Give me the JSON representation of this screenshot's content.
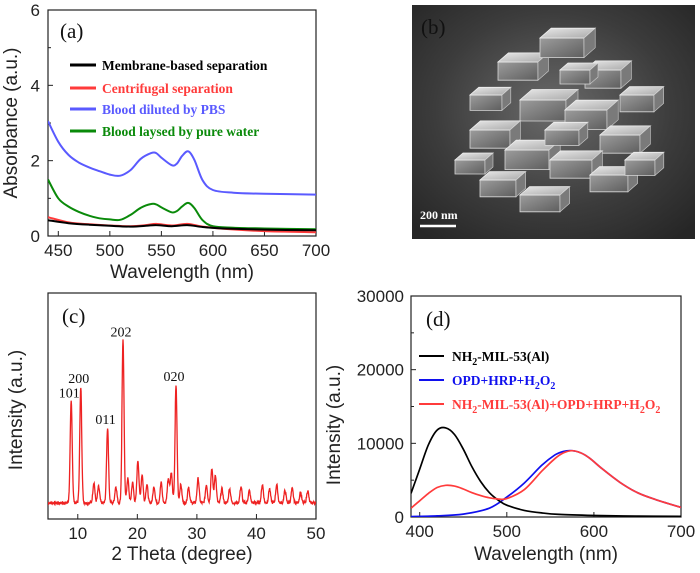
{
  "panels": {
    "a": "(a)",
    "b": "(b)",
    "c": "(c)",
    "d": "(d)"
  },
  "sem_scale_bar": "200 nm",
  "colors": {
    "black": "#000000",
    "red": "#ff3b3b",
    "blue": "#5a5aff",
    "green": "#0a8a0a",
    "xrd": "#ee2222",
    "pure_blue": "#1010ee"
  },
  "chart_data": [
    {
      "id": "a",
      "type": "line",
      "xlabel": "Wavelength (nm)",
      "ylabel": "Absorbance (a.u.)",
      "xlim": [
        440,
        700
      ],
      "ylim": [
        0,
        6
      ],
      "xticks": [
        450,
        500,
        550,
        600,
        650,
        700
      ],
      "yticks": [
        0,
        2,
        4,
        6
      ],
      "legend_position": "top-right",
      "series": [
        {
          "name": "Membrane-based separation",
          "color": "#000000",
          "x": [
            440,
            460,
            480,
            500,
            520,
            535,
            545,
            560,
            575,
            590,
            610,
            650,
            700
          ],
          "y": [
            0.42,
            0.34,
            0.3,
            0.27,
            0.25,
            0.27,
            0.29,
            0.26,
            0.29,
            0.24,
            0.2,
            0.17,
            0.15
          ]
        },
        {
          "name": "Centrifugal separation",
          "color": "#ff3b3b",
          "x": [
            440,
            460,
            480,
            500,
            520,
            535,
            545,
            560,
            575,
            590,
            610,
            650,
            700
          ],
          "y": [
            0.5,
            0.36,
            0.31,
            0.28,
            0.26,
            0.29,
            0.32,
            0.28,
            0.32,
            0.25,
            0.19,
            0.13,
            0.1
          ]
        },
        {
          "name": "Blood diluted by PBS",
          "color": "#5a5aff",
          "x": [
            440,
            450,
            460,
            470,
            480,
            490,
            500,
            510,
            520,
            530,
            540,
            545,
            550,
            560,
            565,
            570,
            576,
            582,
            590,
            600,
            620,
            650,
            700
          ],
          "y": [
            3.05,
            2.5,
            2.15,
            1.95,
            1.82,
            1.72,
            1.63,
            1.6,
            1.75,
            2.05,
            2.2,
            2.2,
            2.08,
            1.88,
            1.92,
            2.12,
            2.25,
            2.02,
            1.48,
            1.22,
            1.15,
            1.12,
            1.1
          ]
        },
        {
          "name": "Blood laysed by pure water",
          "color": "#0a8a0a",
          "x": [
            440,
            450,
            460,
            470,
            480,
            490,
            500,
            510,
            520,
            530,
            540,
            545,
            550,
            560,
            565,
            570,
            576,
            582,
            590,
            600,
            620,
            650,
            700
          ],
          "y": [
            1.5,
            1.0,
            0.78,
            0.64,
            0.54,
            0.47,
            0.44,
            0.43,
            0.56,
            0.75,
            0.85,
            0.84,
            0.76,
            0.63,
            0.66,
            0.78,
            0.88,
            0.74,
            0.42,
            0.26,
            0.22,
            0.2,
            0.18
          ]
        }
      ]
    },
    {
      "id": "c",
      "type": "line",
      "xlabel": "2 Theta (degree)",
      "ylabel": "Intensity (a.u.)",
      "xlim": [
        5,
        50
      ],
      "xticks": [
        10,
        20,
        30,
        40,
        50
      ],
      "y_axis_ticks": "none",
      "series": [
        {
          "name": "XRD pattern",
          "color": "#ee2222",
          "baseline": 4,
          "peaks": [
            [
              8.9,
              50
            ],
            [
              10.5,
              57
            ],
            [
              12.7,
              10
            ],
            [
              13.5,
              8
            ],
            [
              15.0,
              37
            ],
            [
              16.4,
              8
            ],
            [
              17.6,
              80
            ],
            [
              18.4,
              12
            ],
            [
              19.2,
              10
            ],
            [
              20.1,
              21
            ],
            [
              20.8,
              14
            ],
            [
              21.6,
              9
            ],
            [
              22.8,
              8
            ],
            [
              24.0,
              10
            ],
            [
              25.2,
              12
            ],
            [
              25.7,
              15
            ],
            [
              26.5,
              58
            ],
            [
              27.3,
              9
            ],
            [
              28.6,
              8
            ],
            [
              30.2,
              12
            ],
            [
              31.6,
              9
            ],
            [
              32.5,
              17
            ],
            [
              33.1,
              14
            ],
            [
              34.2,
              7
            ],
            [
              35.5,
              7
            ],
            [
              37.4,
              8
            ],
            [
              38.8,
              6
            ],
            [
              41.0,
              9
            ],
            [
              42.2,
              7
            ],
            [
              43.4,
              9
            ],
            [
              44.8,
              6
            ],
            [
              46.0,
              7
            ],
            [
              47.4,
              5
            ],
            [
              48.6,
              6
            ]
          ],
          "peak_width": 0.17
        }
      ],
      "annotations": [
        {
          "text": "101",
          "x": 8.9,
          "y": 50
        },
        {
          "text": "200",
          "x": 10.5,
          "y": 57
        },
        {
          "text": "011",
          "x": 15.0,
          "y": 37
        },
        {
          "text": "202",
          "x": 17.6,
          "y": 80
        },
        {
          "text": "020",
          "x": 26.5,
          "y": 58
        }
      ]
    },
    {
      "id": "d",
      "type": "line",
      "xlabel": "Wavelength (nm)",
      "ylabel": "Intensity (a.u.)",
      "xlim": [
        390,
        700
      ],
      "ylim": [
        0,
        30000
      ],
      "xticks": [
        400,
        500,
        600,
        700
      ],
      "yticks": [
        0,
        10000,
        20000,
        30000
      ],
      "legend_position": "top-right",
      "series": [
        {
          "name": "NH2-MIL-53(Al)",
          "color": "#000000",
          "x": [
            390,
            400,
            410,
            420,
            430,
            440,
            450,
            460,
            470,
            480,
            490,
            500,
            520,
            540,
            560,
            600,
            650,
            700
          ],
          "y": [
            3200,
            6500,
            9800,
            11800,
            12100,
            11200,
            9200,
            6800,
            4800,
            3300,
            2300,
            1600,
            900,
            550,
            350,
            200,
            120,
            80
          ]
        },
        {
          "name": "OPD+HRP+H2O2",
          "color": "#1010ee",
          "x": [
            390,
            420,
            450,
            480,
            500,
            520,
            540,
            555,
            565,
            575,
            585,
            595,
            610,
            630,
            650,
            670,
            700
          ],
          "y": [
            50,
            150,
            400,
            1200,
            2700,
            4600,
            7000,
            8400,
            8900,
            9000,
            8700,
            8000,
            6500,
            4700,
            3300,
            2400,
            1300
          ]
        },
        {
          "name": "NH2-MIL-53(Al)+OPD+HRP+H2O2",
          "color": "#ff3b3b",
          "x": [
            390,
            400,
            410,
            420,
            430,
            440,
            450,
            460,
            470,
            480,
            490,
            500,
            520,
            540,
            555,
            565,
            575,
            585,
            595,
            610,
            630,
            650,
            670,
            700
          ],
          "y": [
            1200,
            2200,
            3200,
            4000,
            4300,
            4200,
            3800,
            3300,
            2900,
            2600,
            2450,
            2500,
            3700,
            6200,
            7900,
            8700,
            9000,
            8700,
            8000,
            6500,
            4700,
            3300,
            2400,
            1300
          ]
        }
      ]
    }
  ]
}
